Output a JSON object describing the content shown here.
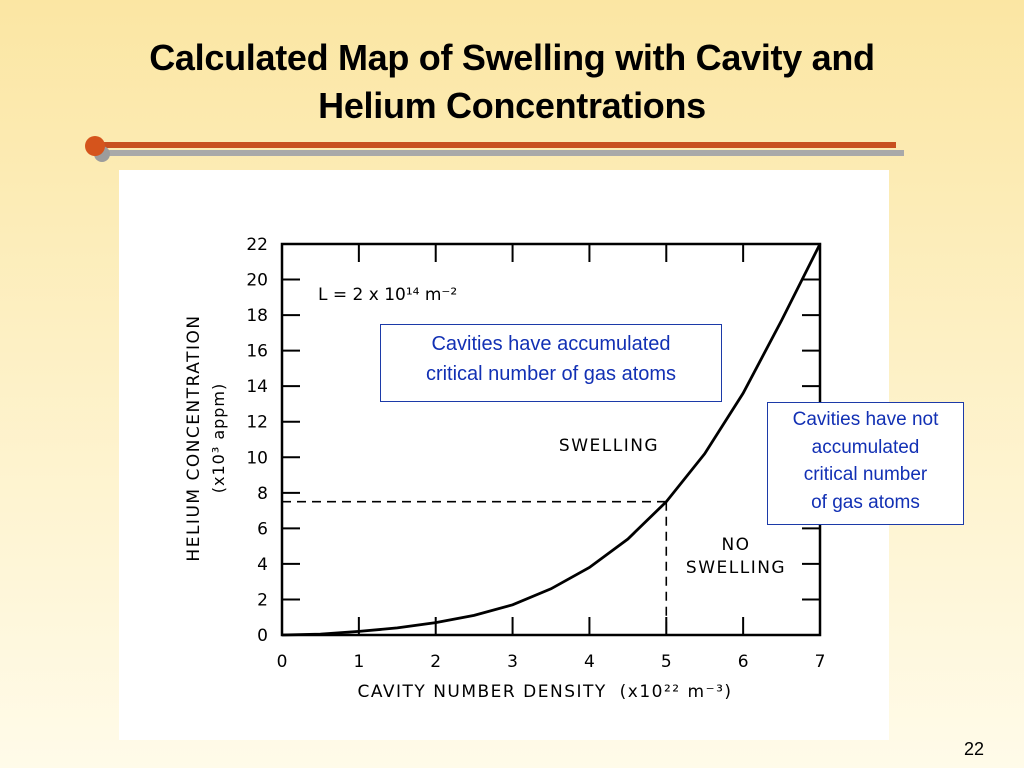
{
  "slide": {
    "title_line1": "Calculated Map of Swelling with Cavity and",
    "title_line2": "Helium Concentrations",
    "page_number": "22",
    "accent_color": "#c8501f"
  },
  "callouts": {
    "swelling_line1": "Cavities have accumulated",
    "swelling_line2": "critical number of gas atoms",
    "noswelling_line1": "Cavities have not",
    "noswelling_line2": "accumulated",
    "noswelling_line3": "critical number",
    "noswelling_line4": "of gas atoms"
  },
  "chart_data": {
    "type": "line",
    "xlabel": "CAVITY NUMBER DENSITY",
    "xunit": "(x10²² m⁻³)",
    "ylabel": "HELIUM CONCENTRATION",
    "yunit": "(x10³ appm)",
    "xlim": [
      0,
      7
    ],
    "ylim": [
      0,
      22
    ],
    "xticks": [
      "0",
      "1",
      "2",
      "3",
      "4",
      "5",
      "6",
      "7"
    ],
    "yticks": [
      "0",
      "2",
      "4",
      "6",
      "8",
      "10",
      "12",
      "14",
      "16",
      "18",
      "20",
      "22"
    ],
    "annotation_parameter": "L = 2 x 10¹⁴ m⁻²",
    "region_labels": {
      "above": "SWELLING",
      "below_line1": "NO",
      "below_line2": "SWELLING"
    },
    "reference_point": {
      "x": 5,
      "y": 7.5
    },
    "series": [
      {
        "x": [
          0,
          0.5,
          1,
          1.5,
          2,
          2.5,
          3,
          3.5,
          4,
          4.5,
          5,
          5.5,
          6,
          6.5,
          7
        ],
        "y": [
          0,
          0.05,
          0.2,
          0.4,
          0.7,
          1.1,
          1.7,
          2.6,
          3.8,
          5.4,
          7.5,
          10.2,
          13.6,
          17.7,
          22
        ]
      }
    ]
  }
}
